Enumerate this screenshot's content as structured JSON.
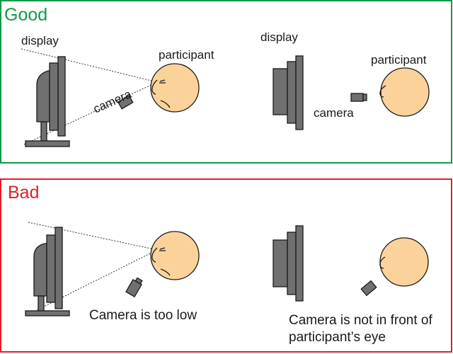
{
  "panels": {
    "good": {
      "title": "Good",
      "title_color": "#0f9a48",
      "border_color": "#0f9a48",
      "left_labels": {
        "display": "display",
        "participant": "participant",
        "camera": "camera"
      },
      "right_labels": {
        "display": "display",
        "participant": "participant",
        "camera": "camera"
      }
    },
    "bad": {
      "title": "Bad",
      "title_color": "#e0202a",
      "border_color": "#e0202a",
      "left_caption": "Camera is too low",
      "right_caption_line1": "Camera is not in front of",
      "right_caption_line2": "participant’s eye"
    }
  },
  "colors": {
    "face": "#fbd39a",
    "device": "#707070",
    "outline": "#1a1a1a"
  }
}
